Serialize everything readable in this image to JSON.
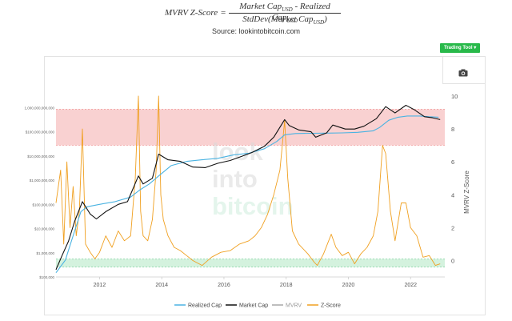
{
  "formula": {
    "lhs": "MVRV Z-Score",
    "eq": "=",
    "numerator": "Market Cap",
    "numerator_sub1": "USD",
    "numerator_mid": " - Realized Cap",
    "numerator_sub2": "USD",
    "denominator": "StdDev(Market Cap",
    "denominator_sub": "USD",
    "denominator_end": ")"
  },
  "source": "Source: lookintobitcoin.com",
  "toolbar": {
    "trading_tool_label": "Trading Tool ▾"
  },
  "watermark": {
    "line1": "look",
    "line2": "into",
    "line3": "bitcoin"
  },
  "colors": {
    "realized": "#4ab3e2",
    "market": "#111111",
    "mvrv": "#a9a9a9",
    "zscore": "#f0a020",
    "band_top": "#f7c6c6",
    "band_bottom": "#c9efd6"
  },
  "chart_data": {
    "type": "line",
    "x_ticks": [
      "2012",
      "2014",
      "2016",
      "2018",
      "2020",
      "2022"
    ],
    "y_left_scale": "log",
    "y_left_ticks": [
      "$100,000",
      "$1,000,000",
      "$10,000,000",
      "$100,000,000",
      "$1,000,000,000",
      "$10,000,000,000",
      "$100,000,000,000",
      "1,000,000,000,000"
    ],
    "y_left_range": [
      100000,
      3000000000000
    ],
    "y_right_label": "MVRV Z-Score",
    "y_right_ticks": [
      "0",
      "2",
      "4",
      "6",
      "8",
      "10"
    ],
    "y_right_range": [
      -1,
      10
    ],
    "x_range": [
      2010.6,
      2023.1
    ],
    "bands": [
      {
        "zone": "top",
        "from": 7,
        "to": 9.2
      },
      {
        "zone": "bottom",
        "from": -0.4,
        "to": 0.1
      }
    ],
    "legend_placement": "bottom",
    "legend": [
      "Realized Cap",
      "Market Cap",
      "MVRV",
      "Z-Score"
    ],
    "series": [
      {
        "name": "Realized Cap",
        "axis": "left",
        "x": [
          2010.6,
          2010.9,
          2011.2,
          2011.4,
          2011.6,
          2012.0,
          2012.5,
          2013.0,
          2013.3,
          2013.6,
          2013.9,
          2014.3,
          2014.8,
          2015.3,
          2015.8,
          2016.3,
          2016.8,
          2017.3,
          2017.7,
          2017.95,
          2018.3,
          2018.8,
          2019.3,
          2019.8,
          2020.3,
          2020.8,
          2021.0,
          2021.3,
          2021.6,
          2021.9,
          2022.3,
          2022.6,
          2022.9
        ],
        "y": [
          150000,
          500000,
          8000000,
          50000000,
          80000000,
          100000000,
          130000000,
          200000000,
          400000000,
          700000000,
          1500000000,
          4000000000,
          6000000000,
          7000000000,
          8000000000,
          11000000000,
          13000000000,
          20000000000,
          40000000000,
          75000000000,
          85000000000,
          87000000000,
          88000000000,
          90000000000,
          95000000000,
          110000000000,
          150000000000,
          300000000000,
          400000000000,
          450000000000,
          450000000000,
          420000000000,
          400000000000
        ]
      },
      {
        "name": "Market Cap",
        "axis": "left",
        "x": [
          2010.6,
          2010.8,
          2011.0,
          2011.2,
          2011.45,
          2011.7,
          2011.9,
          2012.2,
          2012.6,
          2012.9,
          2013.25,
          2013.4,
          2013.7,
          2013.9,
          2014.2,
          2014.6,
          2015.0,
          2015.4,
          2015.8,
          2016.2,
          2016.6,
          2016.9,
          2017.3,
          2017.6,
          2017.95,
          2018.1,
          2018.4,
          2018.8,
          2018.95,
          2019.3,
          2019.5,
          2019.9,
          2020.2,
          2020.5,
          2020.9,
          2021.2,
          2021.5,
          2021.85,
          2022.1,
          2022.45,
          2022.7,
          2022.95
        ],
        "y": [
          200000,
          800000,
          3000000,
          20000000,
          130000000,
          40000000,
          25000000,
          50000000,
          100000000,
          130000000,
          1500000000,
          700000000,
          1200000000,
          12000000000,
          7000000000,
          6000000000,
          3500000000,
          3300000000,
          5000000000,
          6500000000,
          10000000000,
          14000000000,
          25000000000,
          60000000000,
          320000000000,
          180000000000,
          120000000000,
          100000000000,
          60000000000,
          90000000000,
          190000000000,
          130000000000,
          130000000000,
          170000000000,
          350000000000,
          1100000000000,
          600000000000,
          1250000000000,
          850000000000,
          420000000000,
          380000000000,
          320000000000
        ]
      },
      {
        "name": "Z-Score",
        "axis": "right",
        "x": [
          2010.6,
          2010.75,
          2010.85,
          2010.95,
          2011.05,
          2011.15,
          2011.25,
          2011.35,
          2011.45,
          2011.55,
          2011.7,
          2011.85,
          2012.0,
          2012.2,
          2012.4,
          2012.6,
          2012.8,
          2013.0,
          2013.15,
          2013.25,
          2013.32,
          2013.4,
          2013.55,
          2013.7,
          2013.82,
          2013.9,
          2013.97,
          2014.05,
          2014.2,
          2014.4,
          2014.6,
          2014.8,
          2015.0,
          2015.3,
          2015.6,
          2015.9,
          2016.2,
          2016.5,
          2016.8,
          2017.0,
          2017.2,
          2017.4,
          2017.6,
          2017.8,
          2017.95,
          2018.05,
          2018.2,
          2018.4,
          2018.7,
          2018.9,
          2019.0,
          2019.2,
          2019.45,
          2019.6,
          2019.8,
          2020.0,
          2020.2,
          2020.4,
          2020.6,
          2020.8,
          2020.95,
          2021.1,
          2021.2,
          2021.35,
          2021.5,
          2021.7,
          2021.85,
          2022.0,
          2022.2,
          2022.4,
          2022.6,
          2022.8,
          2022.95
        ],
        "y": [
          3.5,
          5.5,
          1.0,
          6.0,
          2.0,
          4.5,
          1.5,
          3.0,
          8.0,
          1.0,
          0.5,
          0.1,
          0.5,
          1.5,
          0.8,
          1.8,
          1.2,
          1.5,
          5.0,
          10.0,
          3.0,
          1.5,
          1.2,
          2.5,
          5.5,
          10.0,
          4.0,
          2.5,
          1.5,
          0.8,
          0.6,
          0.3,
          0.0,
          -0.3,
          0.2,
          0.5,
          0.6,
          1.0,
          1.2,
          1.5,
          2.0,
          2.8,
          4.0,
          5.5,
          8.5,
          5.0,
          1.8,
          1.0,
          0.4,
          -0.1,
          -0.3,
          0.4,
          1.6,
          0.8,
          0.3,
          0.5,
          -0.2,
          0.4,
          0.8,
          1.5,
          3.0,
          7.0,
          6.5,
          3.0,
          1.2,
          3.5,
          3.5,
          2.0,
          1.5,
          0.2,
          0.3,
          -0.3,
          -0.2
        ]
      }
    ]
  }
}
